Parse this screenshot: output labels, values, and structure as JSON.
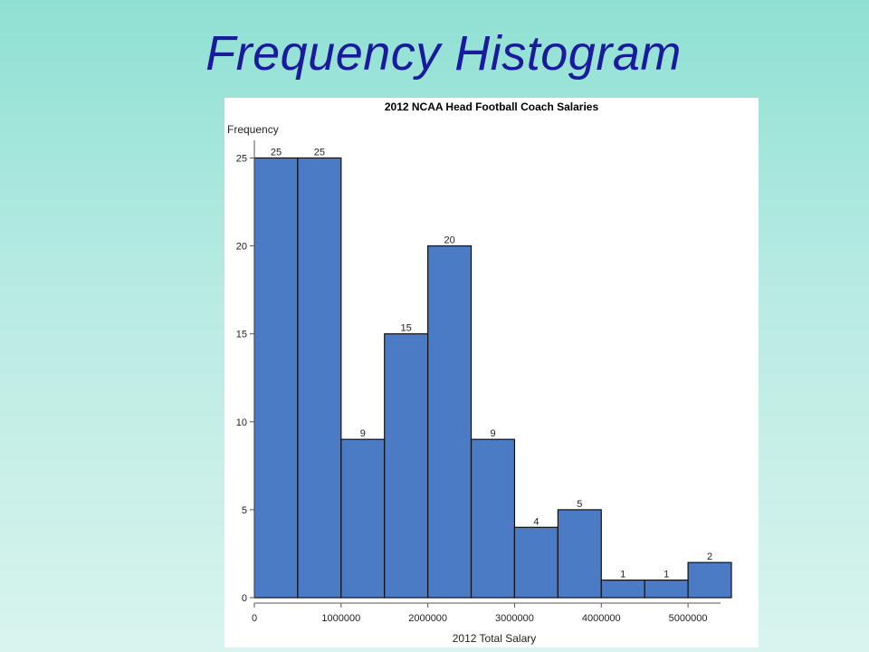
{
  "slide": {
    "title": "Frequency Histogram"
  },
  "chart_data": {
    "type": "bar",
    "title": "2012 NCAA Head Football  Coach Salaries",
    "xlabel": "2012 Total Salary",
    "ylabel": "Frequency",
    "bins": [
      {
        "start": 0,
        "end": 500000
      },
      {
        "start": 500000,
        "end": 1000000
      },
      {
        "start": 1000000,
        "end": 1500000
      },
      {
        "start": 1500000,
        "end": 2000000
      },
      {
        "start": 2000000,
        "end": 2500000
      },
      {
        "start": 2500000,
        "end": 3000000
      },
      {
        "start": 3000000,
        "end": 3500000
      },
      {
        "start": 3500000,
        "end": 4000000
      },
      {
        "start": 4000000,
        "end": 4500000
      },
      {
        "start": 4500000,
        "end": 5000000
      },
      {
        "start": 5000000,
        "end": 5500000
      }
    ],
    "values": [
      25,
      25,
      9,
      15,
      20,
      9,
      4,
      5,
      1,
      1,
      2
    ],
    "xlim": [
      0,
      5500000
    ],
    "ylim": [
      0,
      26
    ],
    "xticks": [
      0,
      1000000,
      2000000,
      3000000,
      4000000,
      5000000
    ],
    "xtick_labels": [
      "0",
      "1000000",
      "2000000",
      "3000000",
      "4000000",
      "5000000"
    ],
    "yticks": [
      0,
      5,
      10,
      15,
      20,
      25
    ],
    "ytick_labels": [
      "0",
      "5",
      "10",
      "15",
      "20",
      "25"
    ],
    "bar_color": "#4a7bc4",
    "grid": false,
    "legend": "none"
  }
}
